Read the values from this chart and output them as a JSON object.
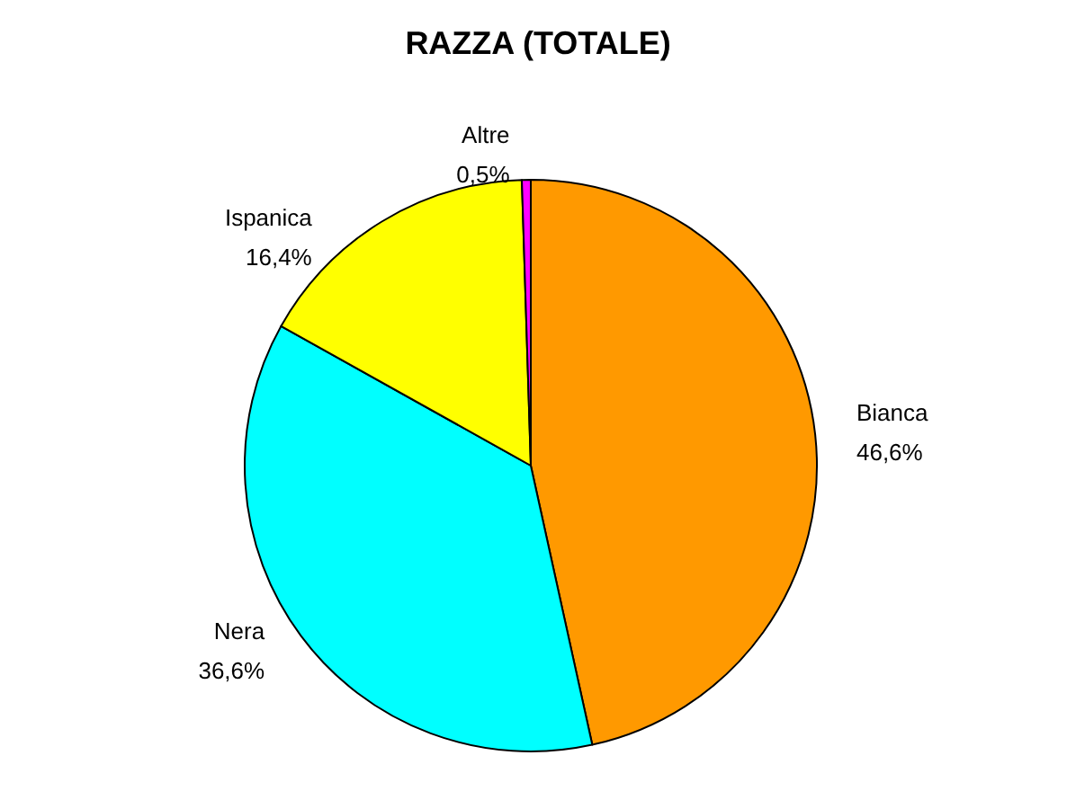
{
  "chart_data": {
    "type": "pie",
    "title": "RAZZA (TOTALE)",
    "categories": [
      "Bianca",
      "Nera",
      "Ispanica",
      "Altre"
    ],
    "values": [
      46.6,
      36.6,
      16.4,
      0.5
    ],
    "colors": [
      "#ff9900",
      "#00ffff",
      "#ffff00",
      "#ff00ff"
    ],
    "value_labels": [
      "46,6%",
      "36,6%",
      "16,4%",
      "0,5%"
    ]
  }
}
